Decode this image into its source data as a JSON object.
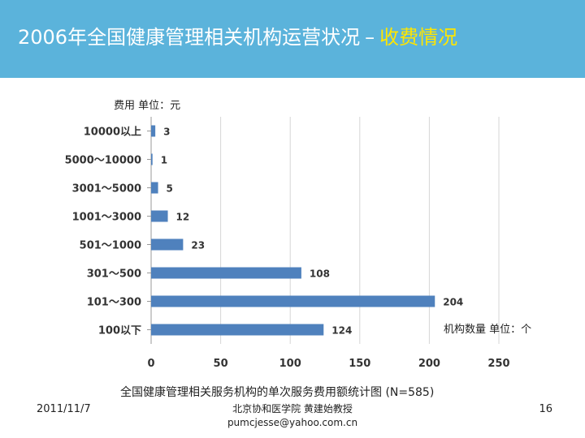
{
  "slide": {
    "title_main": "2006年全国健康管理相关机构运营状况",
    "title_sep": "–",
    "title_highlight": "收费情况",
    "date": "2011/11/7",
    "author": "北京协和医学院 黄建始教授",
    "email": "pumcjesse@yahoo.com.cn",
    "page": "16"
  },
  "colors": {
    "header": "#5bb3db",
    "bar": "#4f81bd",
    "highlight": "#ffe600"
  },
  "chart_data": {
    "type": "bar",
    "orientation": "horizontal",
    "categories": [
      "10000以上",
      "5000～10000",
      "3001～5000",
      "1001～3000",
      "501～1000",
      "301～500",
      "101～300",
      "100以下"
    ],
    "values": [
      3,
      1,
      5,
      12,
      23,
      108,
      204,
      124
    ],
    "value_labels": [
      "3",
      "1",
      "5",
      "12",
      "23",
      "108",
      "204",
      "124"
    ],
    "xticks": [
      "0",
      "50",
      "100",
      "150",
      "200",
      "250"
    ],
    "xlim": [
      0,
      250
    ],
    "ylabel": "费用 单位：元",
    "xlabel": "机构数量 单位：个",
    "caption": "全国健康管理相关服务机构的单次服务费用额统计图 (N=585)",
    "grid": "vertical"
  }
}
